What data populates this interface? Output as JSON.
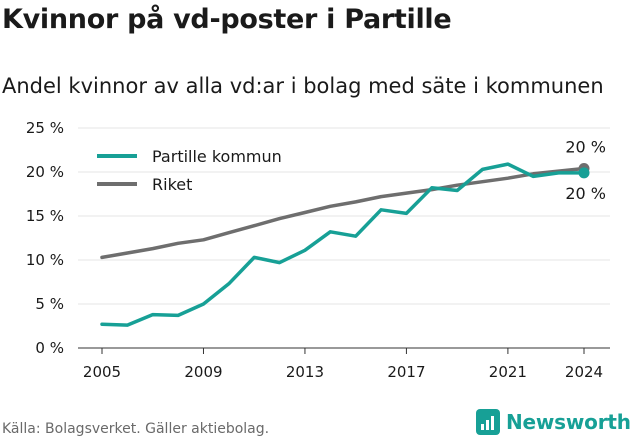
{
  "title": "Kvinnor på vd-poster i Partille",
  "subtitle": "Andel kvinnor av alla vd:ar i bolag med säte i kommunen",
  "footer": "Källa: Bolagsverket. Gäller aktiebolag.",
  "brand": "Newsworthy",
  "colors": {
    "partille": "#17a096",
    "riket": "#6e6e6e",
    "grid": "#e6e6e6",
    "text": "#1a1a1a"
  },
  "chart_data": {
    "type": "line",
    "x": [
      2005,
      2006,
      2007,
      2008,
      2009,
      2010,
      2011,
      2012,
      2013,
      2014,
      2015,
      2016,
      2017,
      2018,
      2019,
      2020,
      2021,
      2022,
      2023,
      2024
    ],
    "xticks": [
      2005,
      2009,
      2013,
      2017,
      2021,
      2024
    ],
    "yticks": [
      0,
      5,
      10,
      15,
      20,
      25
    ],
    "ytick_labels": [
      "0 %",
      "5 %",
      "10 %",
      "15 %",
      "20 %",
      "25 %"
    ],
    "ylim": [
      0,
      25
    ],
    "legend_position": "top-left",
    "series": [
      {
        "name": "Partille kommun",
        "color": "#17a096",
        "values": [
          2.7,
          2.6,
          3.8,
          3.7,
          5.0,
          7.3,
          10.3,
          9.7,
          11.1,
          13.2,
          12.7,
          15.7,
          15.3,
          18.2,
          17.9,
          20.3,
          20.9,
          19.5,
          19.9,
          19.9
        ],
        "end_label": "20 %"
      },
      {
        "name": "Riket",
        "color": "#6e6e6e",
        "values": [
          10.3,
          10.8,
          11.3,
          11.9,
          12.3,
          13.1,
          13.9,
          14.7,
          15.4,
          16.1,
          16.6,
          17.2,
          17.6,
          18.0,
          18.5,
          18.9,
          19.3,
          19.8,
          20.1,
          20.4
        ],
        "end_label": "20 %"
      }
    ]
  }
}
